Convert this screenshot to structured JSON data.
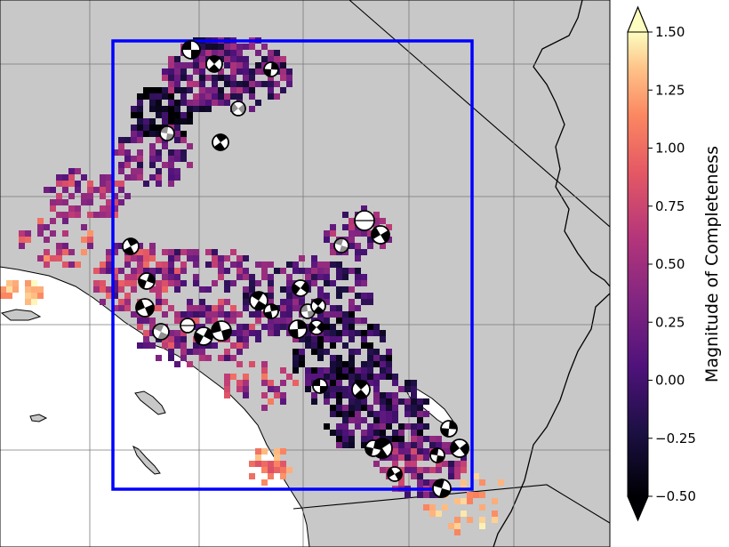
{
  "map": {
    "background_color": "#c8c8c8",
    "ocean_color": "#ffffff",
    "coastline_color": "#000000",
    "region_box_color": "#0000ff",
    "gridlines": true,
    "grid_color": "#7a7a7a",
    "marker_style": "focal mechanism beach balls",
    "marker_colors": {
      "outline": "#000000",
      "compression_black": "#000000",
      "compression_gray": "#909090",
      "dilatation": "#ffffff"
    }
  },
  "colorbar": {
    "label": "Magnitude of Completeness",
    "min": -0.5,
    "max": 1.5,
    "extend": "both",
    "colormap": "magma",
    "ticks": [
      "1.50",
      "1.25",
      "1.00",
      "0.75",
      "0.50",
      "0.25",
      "0.00",
      "−0.25",
      "−0.50"
    ]
  }
}
